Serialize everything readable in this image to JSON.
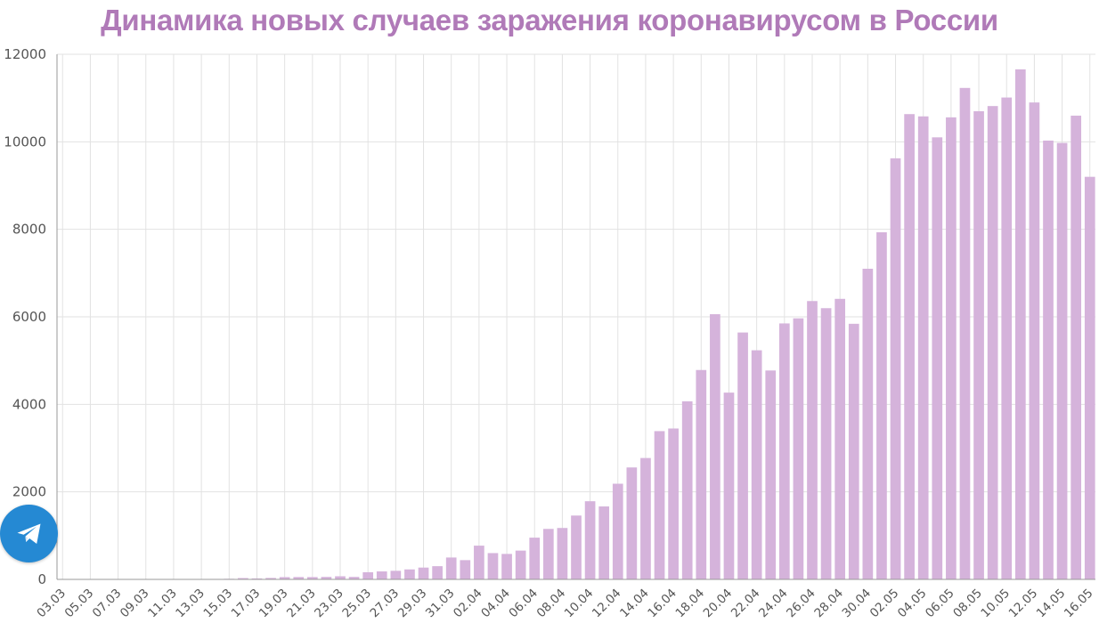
{
  "colors": {
    "title": "#b07ab8",
    "bar": "#d5b3db",
    "grid": "#e2e2e2",
    "axis": "#9a9a9a",
    "telegram": "#2589d3"
  },
  "icons": {
    "telegram": "telegram-icon"
  },
  "chart_data": {
    "type": "bar",
    "title": "Динамика новых случаев заражения коронавирусом в России",
    "xlabel": "",
    "ylabel": "",
    "ylim": [
      0,
      12000
    ],
    "yticks": [
      "0",
      "2000",
      "4000",
      "6000",
      "8000",
      "10000",
      "12000"
    ],
    "grid": true,
    "categories": [
      "03.03",
      "04.03",
      "05.03",
      "06.03",
      "07.03",
      "08.03",
      "09.03",
      "10.03",
      "11.03",
      "12.03",
      "13.03",
      "14.03",
      "15.03",
      "16.03",
      "17.03",
      "18.03",
      "19.03",
      "20.03",
      "21.03",
      "22.03",
      "23.03",
      "24.03",
      "25.03",
      "26.03",
      "27.03",
      "28.03",
      "29.03",
      "30.03",
      "31.03",
      "01.04",
      "02.04",
      "03.04",
      "04.04",
      "05.04",
      "06.04",
      "07.04",
      "08.04",
      "09.04",
      "10.04",
      "11.04",
      "12.04",
      "13.04",
      "14.04",
      "15.04",
      "16.04",
      "17.04",
      "18.04",
      "19.04",
      "20.04",
      "21.04",
      "22.04",
      "23.04",
      "24.04",
      "25.04",
      "26.04",
      "27.04",
      "28.04",
      "29.04",
      "30.04",
      "01.05",
      "02.05",
      "03.05",
      "04.05",
      "05.05",
      "06.05",
      "07.05",
      "08.05",
      "09.05",
      "10.05",
      "11.05",
      "12.05",
      "13.05",
      "14.05",
      "15.05",
      "16.05"
    ],
    "xtick_labels": [
      "03.03",
      "05.03",
      "07.03",
      "09.03",
      "11.03",
      "13.03",
      "15.03",
      "17.03",
      "19.03",
      "21.03",
      "23.03",
      "25.03",
      "27.03",
      "29.03",
      "31.03",
      "02.04",
      "04.04",
      "06.04",
      "08.04",
      "10.04",
      "12.04",
      "14.04",
      "16.04",
      "18.04",
      "20.04",
      "22.04",
      "24.04",
      "26.04",
      "28.04",
      "30.04",
      "02.05",
      "04.05",
      "06.05",
      "08.05",
      "10.05",
      "12.05",
      "14.05",
      "16.05"
    ],
    "values": [
      1,
      0,
      0,
      1,
      4,
      2,
      3,
      3,
      0,
      6,
      6,
      11,
      14,
      30,
      22,
      33,
      52,
      54,
      53,
      57,
      71,
      57,
      163,
      182,
      196,
      228,
      270,
      302,
      500,
      440,
      771,
      601,
      582,
      658,
      954,
      1154,
      1175,
      1459,
      1786,
      1667,
      2186,
      2558,
      2774,
      3388,
      3448,
      4070,
      4785,
      6060,
      4268,
      5642,
      5236,
      4774,
      5849,
      5966,
      6361,
      6198,
      6411,
      5841,
      7099,
      7933,
      9623,
      10633,
      10581,
      10102,
      10559,
      11231,
      10699,
      10817,
      11012,
      11656,
      10899,
      10028,
      9974,
      10598,
      9200
    ]
  }
}
